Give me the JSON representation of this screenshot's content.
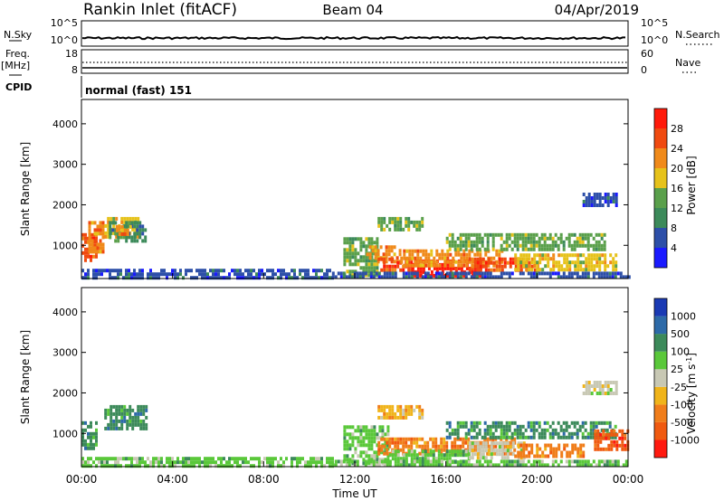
{
  "header": {
    "station": "Rankin Inlet (fitACF)",
    "beam": "Beam 04",
    "date": "04/Apr/2019"
  },
  "colors": {
    "power": [
      "#1a1aff",
      "#2d4fa8",
      "#3c8a5a",
      "#5aa04b",
      "#e6c21a",
      "#f08a1a",
      "#f04a10",
      "#ff1a0a"
    ],
    "velocity": [
      "#ff1a10",
      "#f05a10",
      "#f07d1a",
      "#f0b41a",
      "#c8c8b4",
      "#5ac83a",
      "#3c8a5a",
      "#2d6aa8",
      "#1a3ab4"
    ]
  },
  "panels": {
    "nsky": {
      "left_label": "N.Sky",
      "right_label": "N.Search",
      "left_ticks": [
        "10^5",
        "10^0"
      ],
      "right_ticks": [
        "10^5",
        "10^0"
      ]
    },
    "freq": {
      "left_label_1": "Freq.",
      "left_label_2": "[MHz]",
      "right_label": "Nave",
      "left_ticks": [
        "18",
        "8"
      ],
      "right_ticks": [
        "60",
        "0"
      ]
    },
    "cpid": {
      "label": "CPID",
      "value": "normal (fast) 151"
    }
  },
  "chart_data": [
    {
      "type": "heatmap",
      "name": "power",
      "ylabel": "Slant Range [km]",
      "yticks": [
        1000,
        2000,
        3000,
        4000
      ],
      "ylim": [
        180,
        4600
      ],
      "xlim_hours": [
        0,
        24
      ],
      "colorbar_label": "Power [dB]",
      "colorbar_ticks": [
        "4",
        "8",
        "12",
        "16",
        "20",
        "24",
        "28"
      ],
      "regions": [
        {
          "t": [
            0.0,
            0.6
          ],
          "r": [
            600,
            1300
          ],
          "c": 6
        },
        {
          "t": [
            0.3,
            1.0
          ],
          "r": [
            800,
            1600
          ],
          "c": 5
        },
        {
          "t": [
            1.0,
            2.5
          ],
          "r": [
            1200,
            1700
          ],
          "c": 4
        },
        {
          "t": [
            1.2,
            2.8
          ],
          "r": [
            1100,
            1600
          ],
          "c": 2
        },
        {
          "t": [
            1.5,
            2.2
          ],
          "r": [
            1300,
            1500
          ],
          "c": 5
        },
        {
          "t": [
            0.0,
            11.0
          ],
          "r": [
            200,
            420
          ],
          "c": 1
        },
        {
          "t": [
            11.5,
            13.0
          ],
          "r": [
            300,
            1200
          ],
          "c": 3
        },
        {
          "t": [
            12.5,
            14.0
          ],
          "r": [
            600,
            1000
          ],
          "c": 5
        },
        {
          "t": [
            13.0,
            14.5
          ],
          "r": [
            400,
            700
          ],
          "c": 6
        },
        {
          "t": [
            14.5,
            17.5
          ],
          "r": [
            250,
            650
          ],
          "c": 7
        },
        {
          "t": [
            14.0,
            18.5
          ],
          "r": [
            500,
            900
          ],
          "c": 5
        },
        {
          "t": [
            17.0,
            20.0
          ],
          "r": [
            400,
            700
          ],
          "c": 6
        },
        {
          "t": [
            16.0,
            23.0
          ],
          "r": [
            900,
            1300
          ],
          "c": 3
        },
        {
          "t": [
            19.0,
            23.5
          ],
          "r": [
            400,
            800
          ],
          "c": 4
        },
        {
          "t": [
            22.0,
            23.5
          ],
          "r": [
            2000,
            2300
          ],
          "c": 1
        },
        {
          "t": [
            13.0,
            15.0
          ],
          "r": [
            1400,
            1700
          ],
          "c": 3
        },
        {
          "t": [
            11.0,
            24.0
          ],
          "r": [
            200,
            350
          ],
          "c": 1
        }
      ]
    },
    {
      "type": "heatmap",
      "name": "velocity",
      "ylabel": "Slant Range [km]",
      "yticks": [
        1000,
        2000,
        3000,
        4000
      ],
      "ylim": [
        180,
        4600
      ],
      "xlim_hours": [
        0,
        24
      ],
      "xlabel": "Time UT",
      "xticks": [
        "00:00",
        "04:00",
        "08:00",
        "12:00",
        "16:00",
        "20:00",
        "00:00"
      ],
      "colorbar_label": "Velocity [m s^-1]",
      "colorbar_ticks": [
        "-1000",
        "-500",
        "-100",
        "-25",
        "25",
        "100",
        "500",
        "1000"
      ],
      "regions": [
        {
          "t": [
            0.0,
            0.6
          ],
          "r": [
            600,
            1300
          ],
          "c": 6
        },
        {
          "t": [
            1.0,
            2.8
          ],
          "r": [
            1100,
            1700
          ],
          "c": 6
        },
        {
          "t": [
            0.0,
            11.0
          ],
          "r": [
            200,
            420
          ],
          "c": 5
        },
        {
          "t": [
            11.5,
            13.5
          ],
          "r": [
            300,
            1200
          ],
          "c": 5
        },
        {
          "t": [
            13.0,
            19.0
          ],
          "r": [
            500,
            900
          ],
          "c": 2
        },
        {
          "t": [
            13.5,
            17.0
          ],
          "r": [
            300,
            600
          ],
          "c": 5
        },
        {
          "t": [
            17.0,
            19.5
          ],
          "r": [
            400,
            800
          ],
          "c": 4
        },
        {
          "t": [
            19.0,
            22.0
          ],
          "r": [
            400,
            750
          ],
          "c": 2
        },
        {
          "t": [
            16.0,
            23.5
          ],
          "r": [
            900,
            1300
          ],
          "c": 6
        },
        {
          "t": [
            22.0,
            23.5
          ],
          "r": [
            2000,
            2300
          ],
          "c": 4
        },
        {
          "t": [
            22.5,
            24.0
          ],
          "r": [
            600,
            1100
          ],
          "c": 1
        },
        {
          "t": [
            13.0,
            15.0
          ],
          "r": [
            1400,
            1700
          ],
          "c": 3
        },
        {
          "t": [
            11.0,
            24.0
          ],
          "r": [
            200,
            350
          ],
          "c": 5
        }
      ]
    }
  ]
}
